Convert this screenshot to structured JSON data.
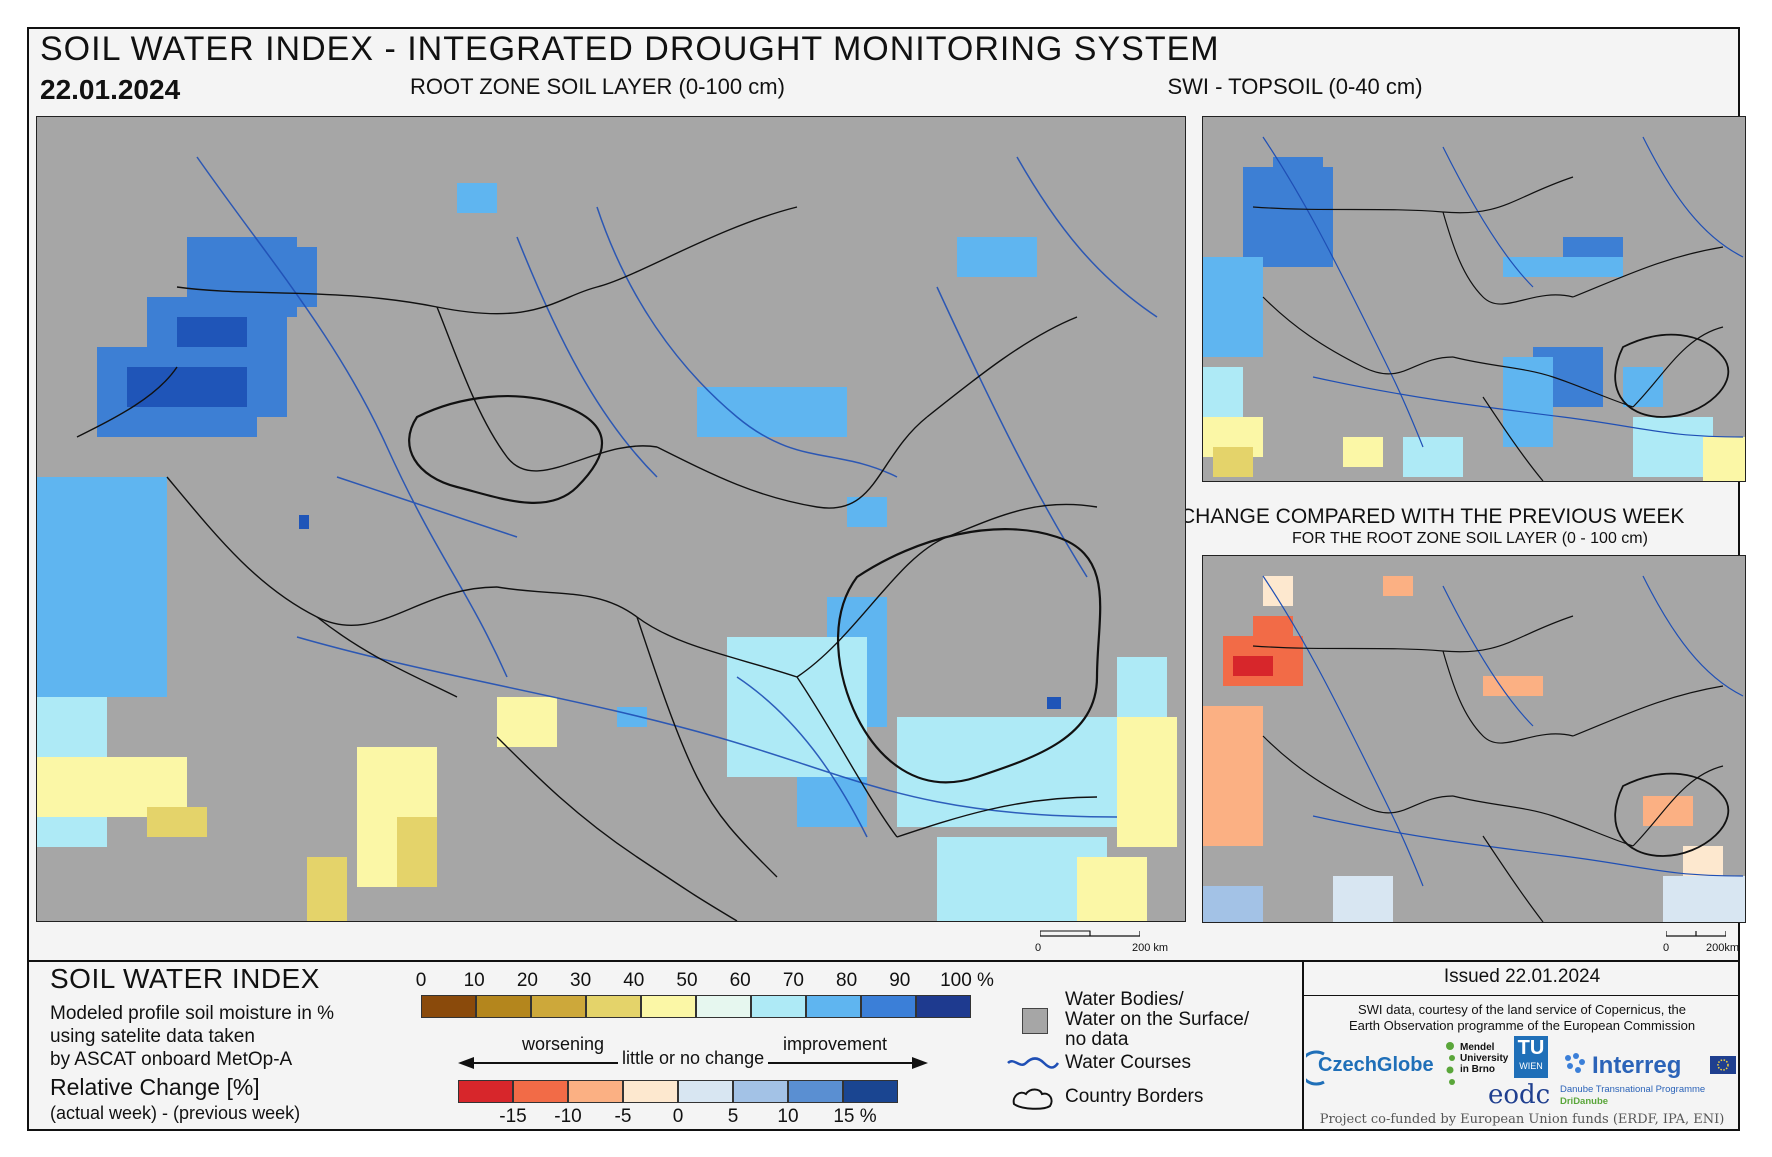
{
  "header": {
    "title": "SOIL WATER INDEX - INTEGRATED DROUGHT MONITORING SYSTEM",
    "date": "22.01.2024"
  },
  "panels": {
    "main_caption": "ROOT ZONE SOIL LAYER (0-100 cm)",
    "topsoil_caption": "SWI - TOPSOIL (0-40 cm)",
    "change_caption": "CHANGE COMPARED WITH THE PREVIOUS WEEK",
    "change_subcaption": "FOR THE ROOT ZONE SOIL LAYER (0 - 100 cm)",
    "scale_main": {
      "zero": "0",
      "end": "200 km"
    },
    "scale_side": {
      "zero": "0",
      "end": "200km"
    }
  },
  "legend": {
    "title": "SOIL WATER INDEX",
    "description": [
      "Modeled profile soil moisture in %",
      "using satelite data taken",
      "by ASCAT onboard MetOp-A"
    ],
    "relative_title": "Relative Change [%]",
    "relative_note": "(actual week) - (previous week)",
    "swi_ticks": [
      "0",
      "10",
      "20",
      "30",
      "40",
      "50",
      "60",
      "70",
      "80",
      "90",
      "100 %"
    ],
    "swi_colors": [
      "#8a4a0b",
      "#b4861d",
      "#cda83a",
      "#e4d36a",
      "#fbf7a6",
      "#e6f7ef",
      "#aeeaf6",
      "#5fb5f0",
      "#3b7fd8",
      "#1e3a8f"
    ],
    "change_labels": {
      "worsening": "worsening",
      "little": "little or no change",
      "improvement": "improvement"
    },
    "change_ticks": [
      "-15",
      "-10",
      "-5",
      "0",
      "5",
      "10",
      "15 %"
    ],
    "change_colors": [
      "#d7262b",
      "#f26b47",
      "#fbb083",
      "#fde8cf",
      "#d8e6f2",
      "#a3c2e6",
      "#5a8fd2",
      "#1a4591"
    ]
  },
  "symbols": {
    "water_bodies": [
      "Water Bodies/",
      "Water on the Surface/",
      "no data"
    ],
    "water_courses": "Water Courses",
    "country_borders": "Country Borders"
  },
  "credits": {
    "issued": "Issued 22.01.2024",
    "copernicus": [
      "SWI data, courtesy of the land service of Copernicus, the",
      "Earth Observation programme of the European Commission"
    ],
    "logos": {
      "czechglobe": "CzechGlobe",
      "mendel": [
        "Mendel",
        "University",
        "in Brno"
      ],
      "tu": "TU",
      "wien": "WIEN",
      "eodc": "eodc",
      "interreg": "Interreg",
      "interreg_sub": "Danube Transnational Programme",
      "dridanube": "DriDanube"
    },
    "funding": "Project co-funded by European Union funds (ERDF, IPA, ENI)"
  }
}
